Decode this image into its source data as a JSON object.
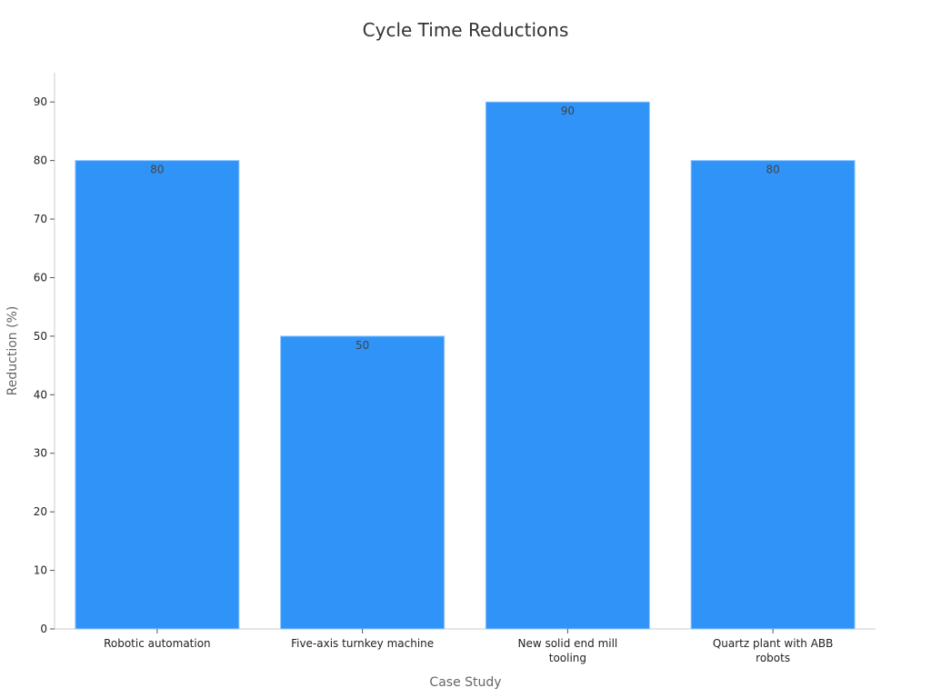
{
  "chart_data": {
    "type": "bar",
    "title": "Cycle Time Reductions",
    "xlabel": "Case Study",
    "ylabel": "Reduction (%)",
    "categories": [
      [
        "Robotic automation"
      ],
      [
        "Five-axis turnkey machine"
      ],
      [
        "New solid end mill",
        "tooling"
      ],
      [
        "Quartz plant with ABB",
        "robots"
      ]
    ],
    "values": [
      80,
      50,
      90,
      80
    ],
    "ylim": [
      0,
      95
    ],
    "yticks": [
      0,
      10,
      20,
      30,
      40,
      50,
      60,
      70,
      80,
      90
    ],
    "grid": false,
    "bar_color": "#2F93F8",
    "bar_edge_color": "#8CC6FF"
  }
}
